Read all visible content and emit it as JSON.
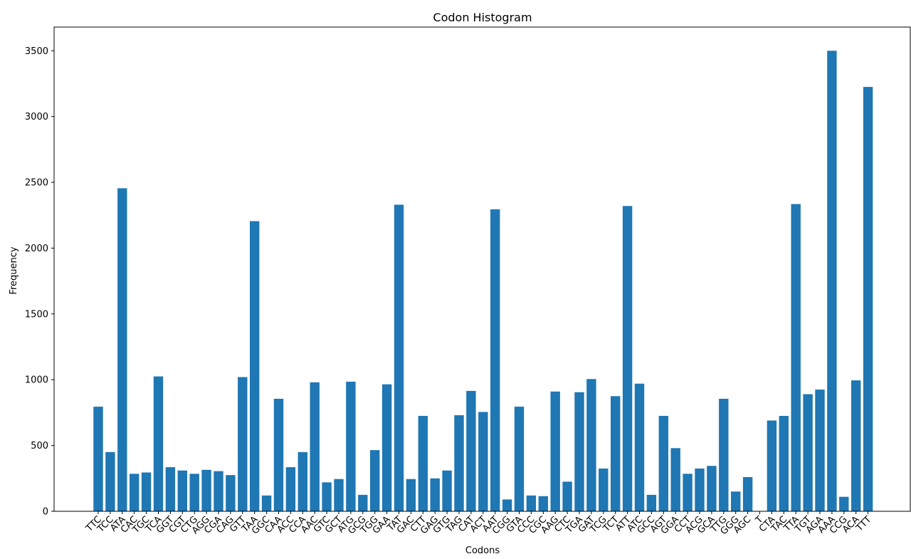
{
  "chart_data": {
    "type": "bar",
    "title": "Codon Histogram",
    "xlabel": "Codons",
    "ylabel": "Frequency",
    "ylim": [
      0,
      3680
    ],
    "yticks": [
      0,
      500,
      1000,
      1500,
      2000,
      2500,
      3000,
      3500
    ],
    "grid": false,
    "bar_color": "#1f77b4",
    "categories": [
      "TTC",
      "TCC",
      "ATA",
      "CAC",
      "TGC",
      "TCA",
      "GGT",
      "CGT",
      "CTG",
      "AGG",
      "CGA",
      "CAG",
      "GTT",
      "TAA",
      "GGC",
      "CAA",
      "ACC",
      "CCA",
      "AAC",
      "GTC",
      "GCT",
      "ATG",
      "GCG",
      "TGG",
      "GAA",
      "TAT",
      "GAC",
      "CTT",
      "GAG",
      "GTG",
      "TAG",
      "CAT",
      "ACT",
      "AAT",
      "CGG",
      "GTA",
      "CCC",
      "CGC",
      "AAG",
      "CTC",
      "TGA",
      "GAT",
      "TCG",
      "TCT",
      "ATT",
      "ATC",
      "GCC",
      "AGT",
      "GGA",
      "CCT",
      "ACG",
      "GCA",
      "TTG",
      "GGG",
      "AGC",
      "T",
      "CTA",
      "TAC",
      "TTA",
      "TGT",
      "AGA",
      "AAA",
      "CCG",
      "ACA",
      "TTT"
    ],
    "values": [
      795,
      450,
      2455,
      285,
      295,
      1025,
      335,
      310,
      285,
      315,
      305,
      275,
      1020,
      2205,
      120,
      855,
      335,
      450,
      980,
      220,
      245,
      985,
      125,
      465,
      965,
      2330,
      245,
      725,
      250,
      310,
      730,
      915,
      755,
      2295,
      90,
      795,
      120,
      115,
      910,
      225,
      905,
      1005,
      325,
      875,
      2320,
      970,
      125,
      725,
      480,
      285,
      325,
      345,
      855,
      150,
      260,
      0,
      690,
      725,
      2335,
      890,
      925,
      3500,
      110,
      995,
      3225
    ]
  }
}
